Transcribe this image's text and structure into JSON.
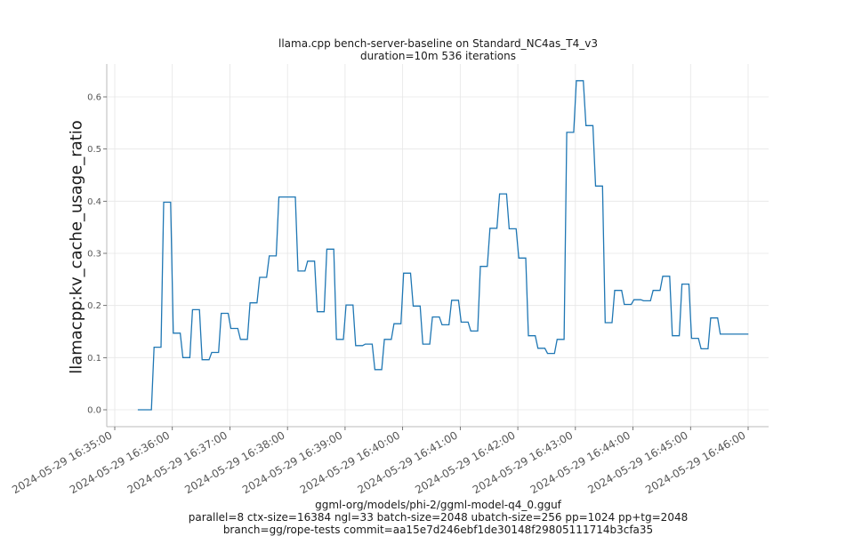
{
  "chart_data": {
    "type": "line",
    "step": true,
    "title": "llama.cpp bench-server-baseline on Standard_NC4as_T4_v3",
    "subtitle": "duration=10m 536 iterations",
    "xlabel": "ggml-org/models/phi-2/ggml-model-q4_0.gguf",
    "xlabel_lines": [
      "ggml-org/models/phi-2/ggml-model-q4_0.gguf",
      "parallel=8 ctx-size=16384 ngl=33 batch-size=2048 ubatch-size=256 pp=1024 pp+tg=2048",
      "branch=gg/rope-tests commit=aa15e7d246ebf1de30148f29805111714b3cfa35"
    ],
    "ylabel": "llamacpp:kv_cache_usage_ratio",
    "ylim": [
      -0.03,
      0.66
    ],
    "yticks": [
      0.0,
      0.1,
      0.2,
      0.3,
      0.4,
      0.5,
      0.6
    ],
    "ytick_labels": [
      "0.0",
      "0.1",
      "0.2",
      "0.3",
      "0.4",
      "0.5",
      "0.6"
    ],
    "xticks": [
      "2024-05-29 16:35:00",
      "2024-05-29 16:36:00",
      "2024-05-29 16:37:00",
      "2024-05-29 16:38:00",
      "2024-05-29 16:39:00",
      "2024-05-29 16:40:00",
      "2024-05-29 16:41:00",
      "2024-05-29 16:42:00",
      "2024-05-29 16:43:00",
      "2024-05-29 16:44:00",
      "2024-05-29 16:45:00",
      "2024-05-29 16:46:00"
    ],
    "grid": true,
    "legend": null,
    "series": [
      {
        "name": "llamacpp:kv_cache_usage_ratio",
        "color": "#1f77b4",
        "x": [
          "16:35:24",
          "16:35:41",
          "16:35:51",
          "16:36:01",
          "16:36:11",
          "16:36:21",
          "16:36:31",
          "16:36:41",
          "16:36:51",
          "16:37:01",
          "16:37:11",
          "16:37:21",
          "16:37:31",
          "16:37:41",
          "16:37:51",
          "16:38:11",
          "16:38:21",
          "16:38:31",
          "16:38:41",
          "16:38:51",
          "16:39:01",
          "16:39:11",
          "16:39:21",
          "16:39:31",
          "16:39:41",
          "16:39:51",
          "16:40:01",
          "16:40:11",
          "16:40:21",
          "16:40:31",
          "16:40:41",
          "16:40:51",
          "16:41:01",
          "16:41:11",
          "16:41:21",
          "16:41:31",
          "16:41:41",
          "16:41:51",
          "16:42:01",
          "16:42:11",
          "16:42:21",
          "16:42:31",
          "16:42:41",
          "16:42:51",
          "16:43:01",
          "16:43:11",
          "16:43:21",
          "16:43:31",
          "16:43:41",
          "16:43:51",
          "16:44:01",
          "16:44:11",
          "16:44:21",
          "16:44:31",
          "16:44:41",
          "16:44:51",
          "16:45:01",
          "16:45:11",
          "16:45:21",
          "16:45:31",
          "16:45:51"
        ],
        "values": [
          0.0,
          0.12,
          0.398,
          0.147,
          0.1,
          0.192,
          0.096,
          0.11,
          0.185,
          0.156,
          0.135,
          0.205,
          0.254,
          0.295,
          0.408,
          0.266,
          0.285,
          0.188,
          0.308,
          0.135,
          0.201,
          0.123,
          0.126,
          0.077,
          0.135,
          0.165,
          0.262,
          0.199,
          0.126,
          0.178,
          0.163,
          0.21,
          0.168,
          0.151,
          0.275,
          0.348,
          0.414,
          0.347,
          0.291,
          0.142,
          0.118,
          0.108,
          0.135,
          0.532,
          0.631,
          0.545,
          0.429,
          0.167,
          0.229,
          0.202,
          0.211,
          0.209,
          0.229,
          0.256,
          0.142,
          0.241,
          0.137,
          0.117,
          0.176,
          0.145,
          0.145
        ]
      }
    ]
  }
}
